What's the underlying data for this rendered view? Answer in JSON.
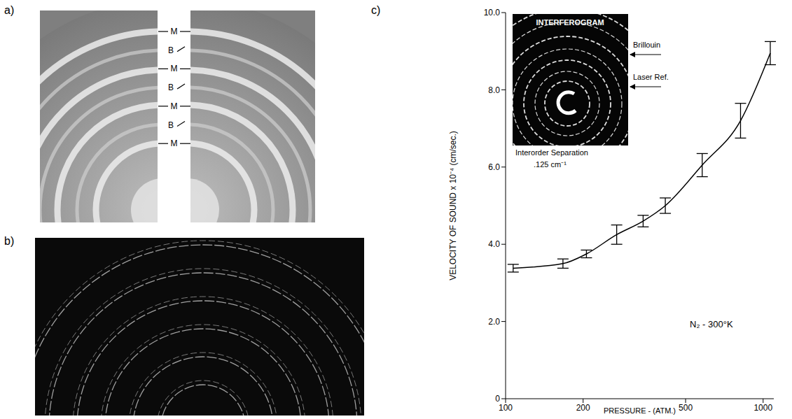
{
  "panels": [
    {
      "letter": "a)",
      "ring_labels": [
        "M",
        "B",
        "M",
        "B",
        "M",
        "B",
        "M"
      ]
    },
    {
      "letter": "b)"
    },
    {
      "letter": "c)"
    }
  ],
  "chart_data": {
    "type": "line",
    "x_label": "PRESSURE - (ATM.)",
    "y_label": "VELOCITY OF SOUND x 10⁻⁴ (cm/sec.)",
    "annotations": [
      "N₂ - 300°K"
    ],
    "inset": {
      "title": "INTERFEROGRAM",
      "labels": [
        "Brillouin",
        "Laser Ref."
      ],
      "caption": [
        "Interorder Separation",
        ".125 cm⁻¹"
      ]
    },
    "x": [
      107,
      167,
      206,
      270,
      342,
      417,
      580,
      817,
      1066
    ],
    "values": [
      3.38,
      3.5,
      3.75,
      4.25,
      4.6,
      5.0,
      6.05,
      7.2,
      8.95
    ],
    "errors": [
      0.1,
      0.12,
      0.1,
      0.25,
      0.15,
      0.2,
      0.3,
      0.45,
      0.3
    ],
    "xlim": [
      100,
      1100
    ],
    "xticks": [
      100,
      200,
      500,
      1000
    ],
    "ylim": [
      0,
      10
    ],
    "yticks": [
      0,
      {
        "value": 2,
        "label": "2.0"
      },
      {
        "value": 4,
        "label": "4.0"
      },
      {
        "value": 6,
        "label": "6.0"
      },
      {
        "value": 8,
        "label": "8.0"
      },
      {
        "value": 10,
        "label": "10.0"
      }
    ],
    "log": "x",
    "grid": false,
    "color": "#000000",
    "marker": "none",
    "line_style": "solid"
  }
}
